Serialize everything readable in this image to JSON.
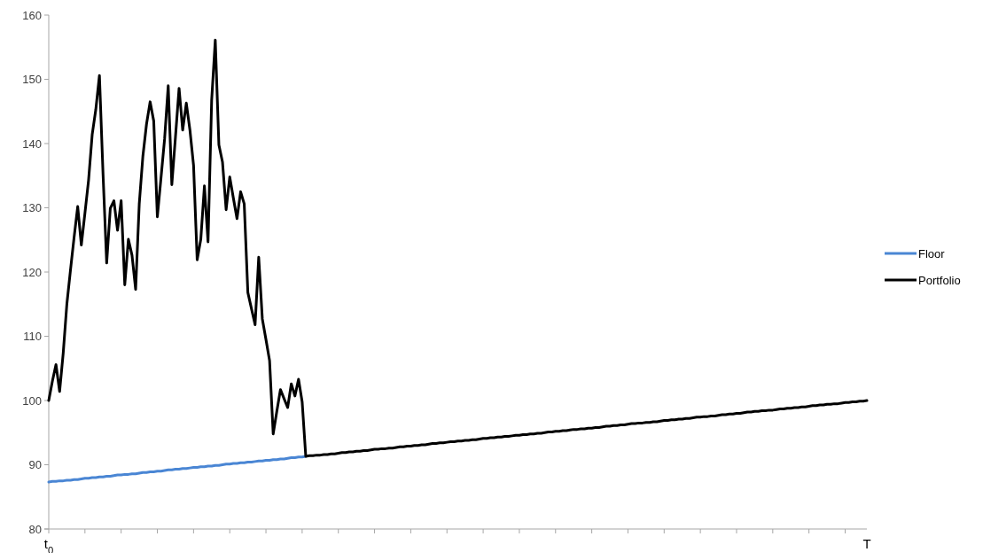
{
  "chart_data": {
    "type": "line",
    "ylim": [
      80,
      160
    ],
    "yticks": [
      80,
      90,
      100,
      110,
      120,
      130,
      140,
      150,
      160
    ],
    "categories": [
      "t$_{0}$",
      null,
      null,
      null,
      null,
      null,
      null,
      null,
      null,
      null,
      null,
      null,
      null,
      null,
      null,
      null,
      null,
      null,
      null,
      null,
      null,
      null,
      null,
      null,
      null,
      null,
      null,
      null,
      null,
      null,
      null,
      null,
      null,
      null,
      null,
      null,
      null,
      null,
      null,
      null,
      null,
      null,
      null,
      null,
      null,
      null,
      null,
      null,
      null,
      null,
      null,
      null,
      null,
      null,
      null,
      null,
      null,
      null,
      null,
      null,
      null,
      null,
      null,
      null,
      null,
      null,
      null,
      null,
      null,
      null,
      null,
      null,
      null,
      null,
      null,
      null,
      null,
      null,
      null,
      null,
      null,
      null,
      null,
      null,
      null,
      null,
      null,
      null,
      null,
      null,
      null,
      null,
      null,
      null,
      null,
      null,
      null,
      null,
      null,
      null,
      null,
      null,
      null,
      null,
      null,
      null,
      null,
      null,
      null,
      null,
      null,
      null,
      null,
      null,
      null,
      null,
      null,
      null,
      null,
      null,
      null,
      null,
      null,
      null,
      null,
      null,
      null,
      null,
      null,
      null,
      null,
      null,
      null,
      null,
      null,
      null,
      null,
      null,
      null,
      null,
      null,
      null,
      null,
      null,
      null,
      null,
      null,
      null,
      null,
      null,
      null,
      null,
      null,
      null,
      null,
      null,
      null,
      null,
      null,
      null,
      null,
      null,
      null,
      null,
      null,
      null,
      null,
      null,
      null,
      null,
      null,
      null,
      null,
      null,
      null,
      null,
      null,
      null,
      null,
      null,
      null,
      null,
      null,
      null,
      null,
      null,
      null,
      null,
      null,
      null,
      null,
      null,
      null,
      null,
      null,
      null,
      null,
      null,
      null,
      null,
      null,
      null,
      null,
      null,
      null,
      null,
      null,
      null,
      null,
      null,
      null,
      null,
      null,
      null,
      null,
      null,
      null,
      null,
      null,
      null,
      null,
      null,
      null,
      null,
      null,
      null,
      "T"
    ],
    "legend": "right",
    "grid": false,
    "marker": "none",
    "series": [
      {
        "name": "Floor",
        "color": "#4a86d4",
        "values": [
          87.3,
          87.4,
          87.4,
          87.5,
          87.5,
          87.6,
          87.6,
          87.7,
          87.7,
          87.8,
          87.9,
          87.9,
          88.0,
          88.0,
          88.1,
          88.1,
          88.2,
          88.2,
          88.3,
          88.4,
          88.4,
          88.5,
          88.5,
          88.6,
          88.6,
          88.7,
          88.8,
          88.8,
          88.9,
          88.9,
          89.0,
          89.0,
          89.1,
          89.2,
          89.2,
          89.3,
          89.3,
          89.4,
          89.4,
          89.5,
          89.6,
          89.6,
          89.7,
          89.7,
          89.8,
          89.8,
          89.9,
          89.9,
          90.0,
          90.1,
          90.1,
          90.2,
          90.2,
          90.3,
          90.3,
          90.4,
          90.4,
          90.5,
          90.6,
          90.6,
          90.7,
          90.7,
          90.8,
          90.8,
          90.9,
          90.9,
          91.0,
          91.1,
          91.1,
          91.2,
          91.2,
          91.3,
          null,
          null,
          null,
          null,
          null,
          null,
          null,
          null,
          null,
          null,
          null,
          null,
          null,
          null,
          null,
          null,
          null,
          null,
          null,
          null,
          null,
          null,
          null,
          null,
          null,
          null,
          null,
          null,
          null,
          null,
          null,
          null,
          null,
          null,
          null,
          null,
          null,
          null,
          null,
          null,
          null,
          null,
          null,
          null,
          null,
          null,
          null,
          null,
          null,
          null,
          null,
          null,
          null,
          null,
          null,
          null,
          null,
          null,
          null,
          null,
          null,
          null,
          null,
          null,
          null,
          null,
          null,
          null,
          null,
          null,
          null,
          null,
          null,
          null,
          null,
          null,
          null,
          null,
          null,
          null,
          null,
          null,
          null,
          null,
          null,
          null,
          null,
          null,
          null,
          null,
          null,
          null,
          null,
          null,
          null,
          null,
          null,
          null,
          null,
          null,
          null,
          null,
          null,
          null,
          null,
          null,
          null,
          null,
          null,
          null,
          null,
          null,
          null,
          null,
          null,
          null,
          null,
          null,
          null,
          null,
          null,
          null,
          null,
          null,
          null,
          null,
          null,
          null,
          null,
          null,
          null,
          null,
          null,
          null,
          null,
          null,
          null,
          null,
          null,
          null,
          null,
          null,
          null,
          null,
          null,
          null,
          null,
          null,
          null,
          null,
          null,
          null,
          null,
          null,
          null
        ]
      },
      {
        "name": "Portfolio",
        "color": "#000000",
        "values": [
          100,
          103,
          105.6,
          101.4,
          107.4,
          115,
          120.3,
          125.4,
          130.2,
          124.2,
          129.2,
          134.3,
          141.4,
          145.3,
          150.6,
          135.2,
          121.4,
          129.9,
          131.1,
          126.5,
          131.1,
          118,
          125.1,
          122.6,
          117.3,
          130.6,
          138,
          143,
          146.5,
          143.5,
          128.6,
          134.6,
          140.7,
          149,
          133.6,
          141,
          148.6,
          142.1,
          146.3,
          142.1,
          136.6,
          121.9,
          125.1,
          133.4,
          124.7,
          146.7,
          156.1,
          139.8,
          137.1,
          129.7,
          134.8,
          131.5,
          128.3,
          132.5,
          130.6,
          116.8,
          114.3,
          111.8,
          122.3,
          112.7,
          109.5,
          106.2,
          94.8,
          98.3,
          101.7,
          100.3,
          98.9,
          102.6,
          100.7,
          103.3,
          99.8,
          91.3,
          91.4,
          91.4,
          91.5,
          91.5,
          91.6,
          91.6,
          91.7,
          91.7,
          91.8,
          91.9,
          91.9,
          92.0,
          92.0,
          92.1,
          92.1,
          92.2,
          92.2,
          92.3,
          92.4,
          92.4,
          92.5,
          92.5,
          92.6,
          92.6,
          92.7,
          92.8,
          92.8,
          92.9,
          92.9,
          93.0,
          93.0,
          93.1,
          93.1,
          93.2,
          93.3,
          93.3,
          93.4,
          93.4,
          93.5,
          93.6,
          93.6,
          93.7,
          93.7,
          93.8,
          93.8,
          93.9,
          93.9,
          94.0,
          94.1,
          94.1,
          94.2,
          94.2,
          94.3,
          94.3,
          94.4,
          94.4,
          94.5,
          94.6,
          94.6,
          94.7,
          94.7,
          94.8,
          94.8,
          94.9,
          94.9,
          95.0,
          95.1,
          95.1,
          95.2,
          95.2,
          95.3,
          95.3,
          95.4,
          95.5,
          95.5,
          95.6,
          95.6,
          95.7,
          95.7,
          95.8,
          95.8,
          95.9,
          96.0,
          96.0,
          96.1,
          96.1,
          96.2,
          96.2,
          96.3,
          96.4,
          96.4,
          96.5,
          96.5,
          96.6,
          96.6,
          96.7,
          96.7,
          96.8,
          96.9,
          96.9,
          97.0,
          97.0,
          97.1,
          97.1,
          97.2,
          97.2,
          97.3,
          97.4,
          97.4,
          97.5,
          97.5,
          97.6,
          97.6,
          97.7,
          97.8,
          97.8,
          97.9,
          97.9,
          98.0,
          98.0,
          98.1,
          98.2,
          98.2,
          98.3,
          98.3,
          98.4,
          98.4,
          98.5,
          98.5,
          98.6,
          98.7,
          98.7,
          98.8,
          98.8,
          98.9,
          98.9,
          99.0,
          99.0,
          99.1,
          99.2,
          99.2,
          99.3,
          99.3,
          99.4,
          99.4,
          99.5,
          99.5,
          99.6,
          99.7,
          99.7,
          99.8,
          99.8,
          99.9,
          99.9,
          100.0
        ]
      }
    ]
  }
}
